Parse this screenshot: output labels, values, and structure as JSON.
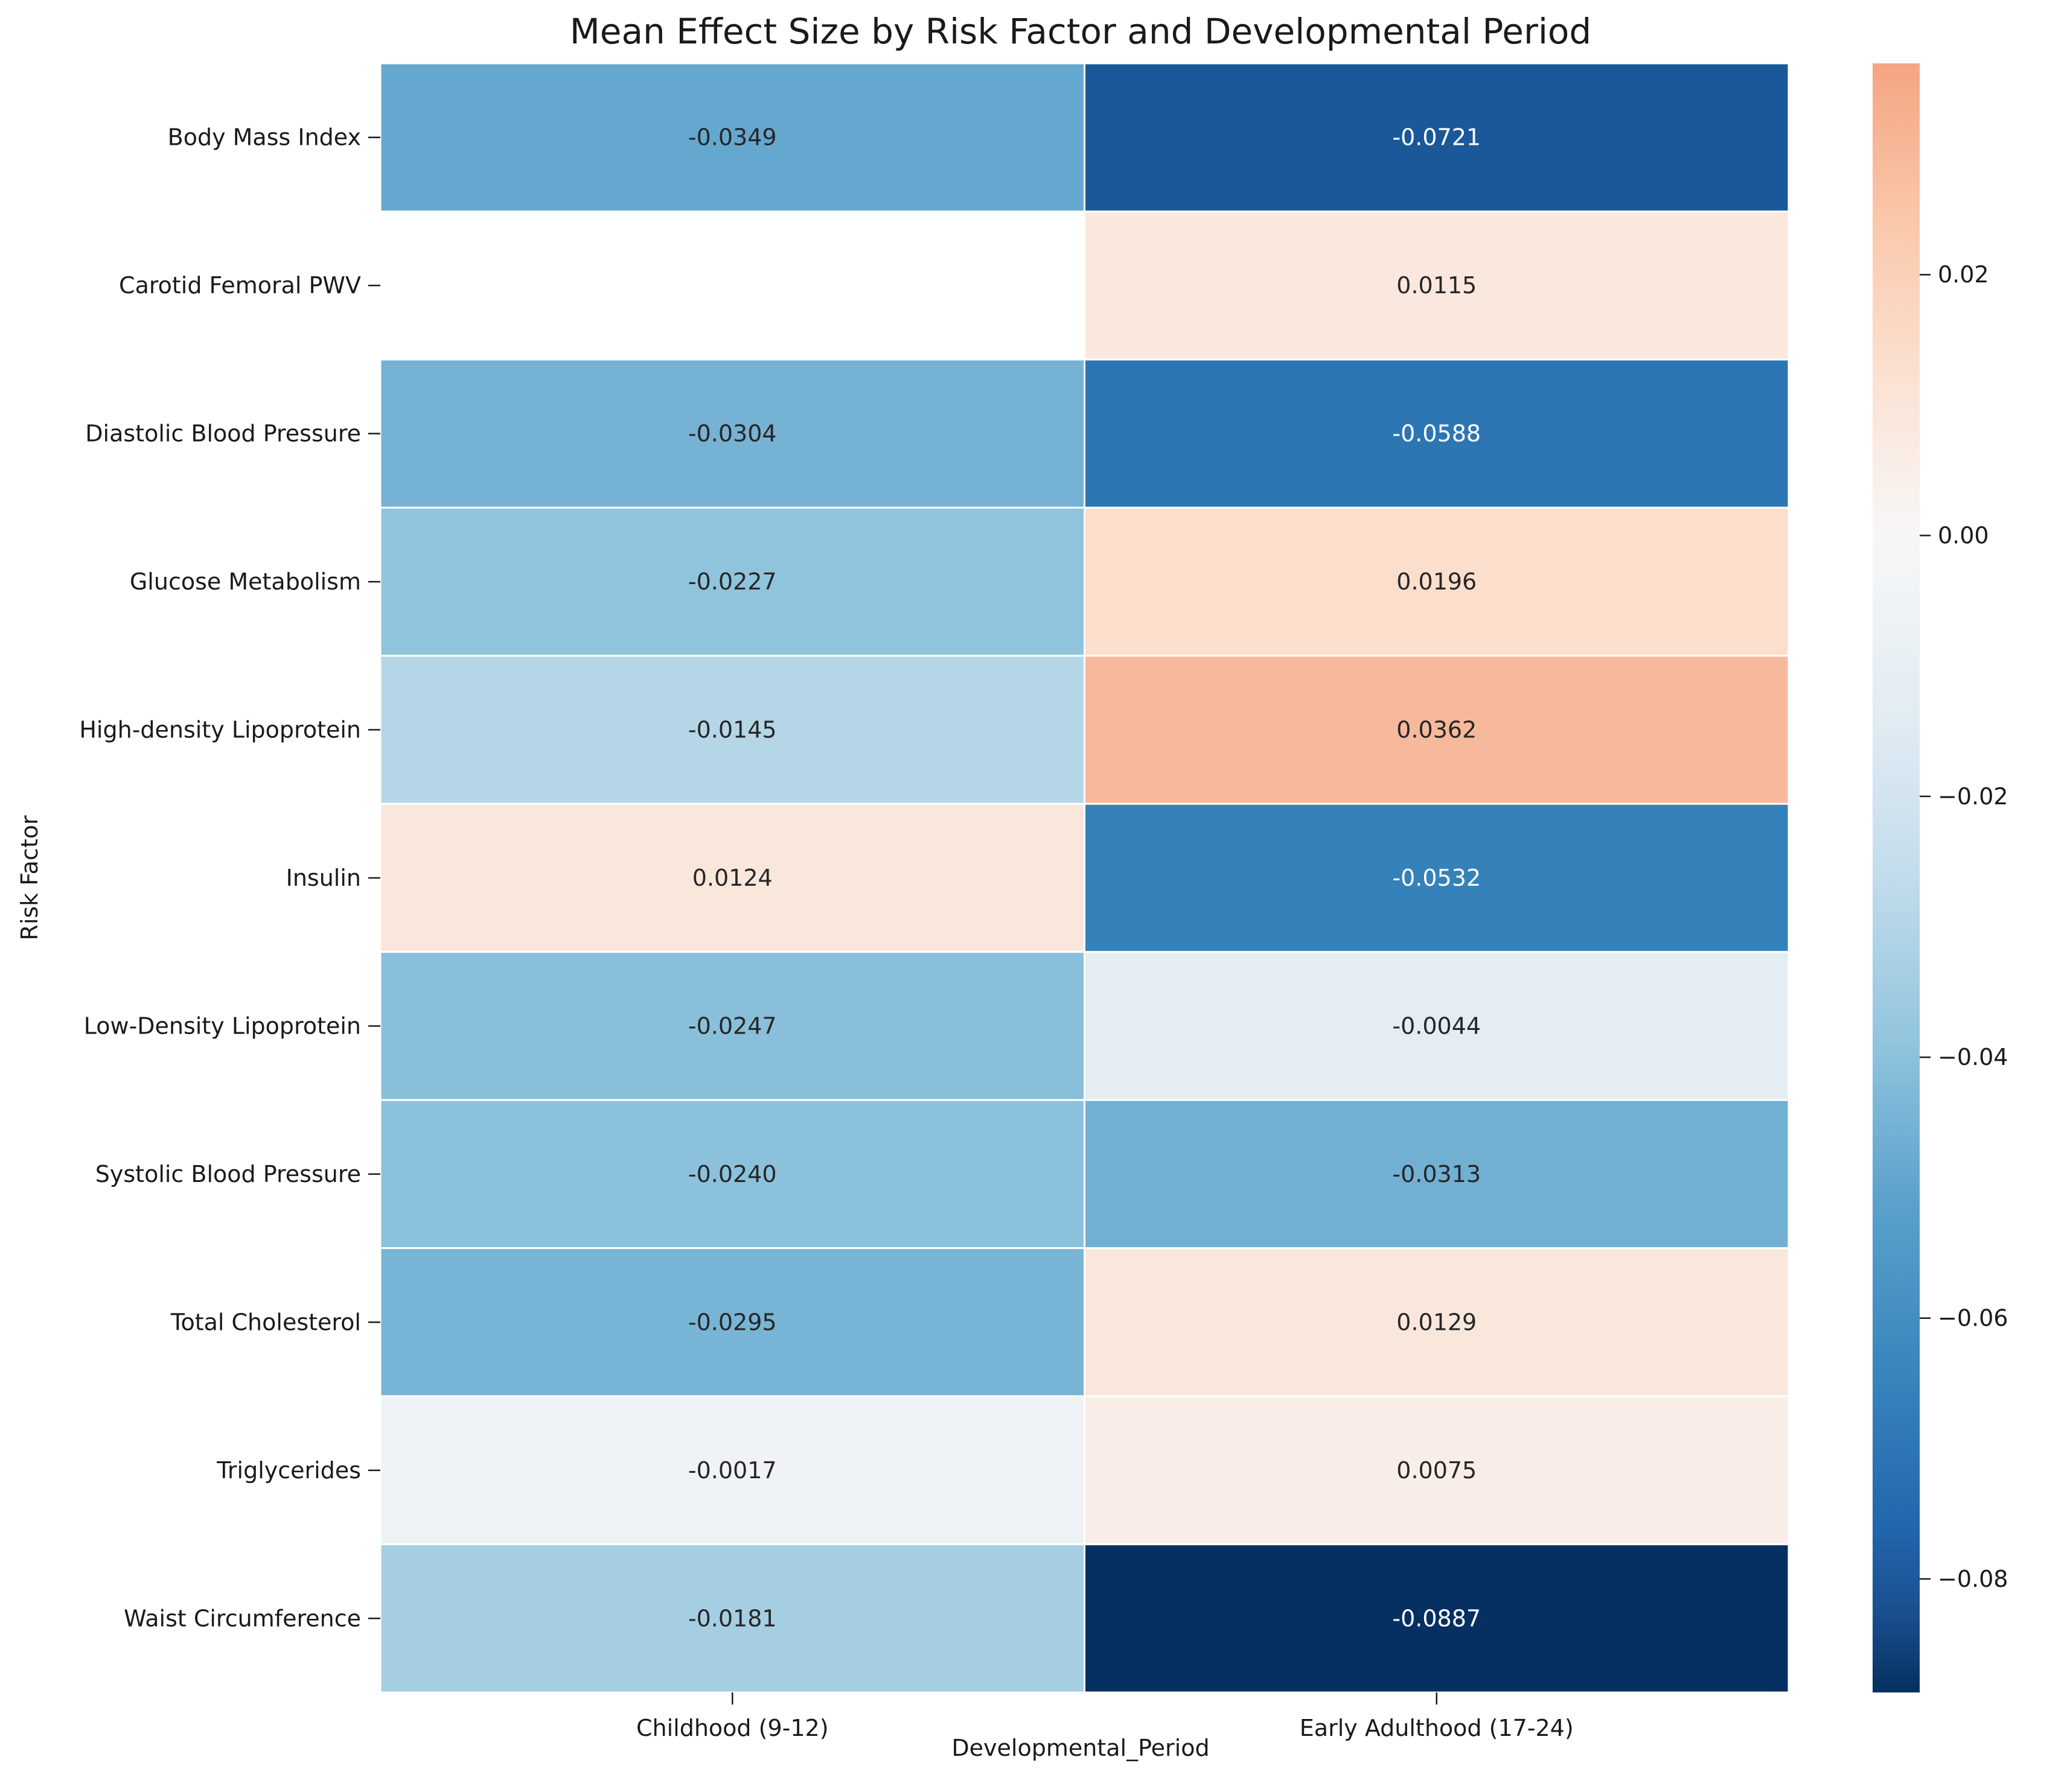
{
  "chart_data": {
    "type": "heatmap",
    "title": "Mean Effect Size by Risk Factor and Developmental Period",
    "xlabel": "Developmental_Period",
    "ylabel": "Risk Factor",
    "columns": [
      "Childhood (9-12)",
      "Early Adulthood (17-24)"
    ],
    "rows": [
      "Body Mass Index",
      "Carotid Femoral PWV",
      "Diastolic Blood Pressure",
      "Glucose Metabolism",
      "High-density Lipoprotein",
      "Insulin",
      "Low-Density Lipoprotein",
      "Systolic Blood Pressure",
      "Total Cholesterol",
      "Triglycerides",
      "Waist Circumference"
    ],
    "values": [
      [
        -0.0349,
        -0.0721
      ],
      [
        null,
        0.0115
      ],
      [
        -0.0304,
        -0.0588
      ],
      [
        -0.0227,
        0.0196
      ],
      [
        -0.0145,
        0.0362
      ],
      [
        0.0124,
        -0.0532
      ],
      [
        -0.0247,
        -0.0044
      ],
      [
        -0.024,
        -0.0313
      ],
      [
        -0.0295,
        0.0129
      ],
      [
        -0.0017,
        0.0075
      ],
      [
        -0.0181,
        -0.0887
      ]
    ],
    "value_labels": [
      [
        "-0.0349",
        "-0.0721"
      ],
      [
        "",
        "0.0115"
      ],
      [
        "-0.0304",
        "-0.0588"
      ],
      [
        "-0.0227",
        "0.0196"
      ],
      [
        "-0.0145",
        "0.0362"
      ],
      [
        "0.0124",
        "-0.0532"
      ],
      [
        "-0.0247",
        "-0.0044"
      ],
      [
        "-0.0240",
        "-0.0313"
      ],
      [
        "-0.0295",
        "0.0129"
      ],
      [
        "-0.0017",
        "0.0075"
      ],
      [
        "-0.0181",
        "-0.0887"
      ]
    ],
    "colormap": "RdBu_r",
    "center": 0,
    "colorbar": {
      "range": [
        -0.0887,
        0.0362
      ],
      "ticks": [
        0.02,
        0.0,
        -0.02,
        -0.04,
        -0.06,
        -0.08
      ],
      "tick_labels": [
        "0.02",
        "0.00",
        "−0.02",
        "−0.04",
        "−0.06",
        "−0.08"
      ]
    },
    "grid": false,
    "legend": "colorbar-right"
  }
}
